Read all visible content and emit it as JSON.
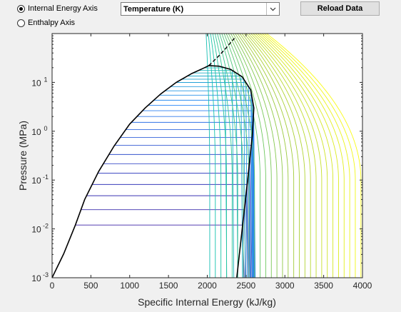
{
  "controls": {
    "radio_internal": "Internal Energy Axis",
    "radio_enthalpy": "Enthalpy Axis",
    "selected": "internal",
    "property_select": "Temperature (K)",
    "reload_button": "Reload Data"
  },
  "chart_data": {
    "type": "line",
    "title": "",
    "xlabel": "Specific Internal Energy (kJ/kg)",
    "ylabel": "Pressure (MPa)",
    "xlim": [
      0,
      4000
    ],
    "ylim": [
      0.001,
      100
    ],
    "yscale": "log",
    "grid": false,
    "xticks": [
      0,
      500,
      1000,
      1500,
      2000,
      2500,
      3000,
      3500,
      4000
    ],
    "yticks": [
      0.001,
      0.01,
      0.1,
      1,
      10
    ],
    "yticklabels": [
      {
        "base": "10",
        "exp": "-3"
      },
      {
        "base": "10",
        "exp": "-2"
      },
      {
        "base": "10",
        "exp": "-1"
      },
      {
        "base": "10",
        "exp": "0"
      },
      {
        "base": "10",
        "exp": "1"
      }
    ],
    "saturation_dome": {
      "liquid": [
        [
          0,
          0.001
        ],
        [
          150,
          0.0031
        ],
        [
          300,
          0.012
        ],
        [
          420,
          0.04
        ],
        [
          600,
          0.15
        ],
        [
          800,
          0.5
        ],
        [
          1000,
          1.4
        ],
        [
          1200,
          3.0
        ],
        [
          1400,
          5.8
        ],
        [
          1600,
          10.0
        ],
        [
          1800,
          15.2
        ],
        [
          1950,
          19.5
        ],
        [
          2020,
          22.06
        ]
      ],
      "vapor": [
        [
          2020,
          22.06
        ],
        [
          2150,
          21.5
        ],
        [
          2300,
          18.5
        ],
        [
          2450,
          13
        ],
        [
          2560,
          7
        ],
        [
          2600,
          3
        ],
        [
          2580,
          0.8
        ],
        [
          2520,
          0.1
        ],
        [
          2450,
          0.01
        ],
        [
          2380,
          0.001
        ]
      ]
    },
    "critical_extension": [
      [
        2020,
        22.06
      ],
      [
        2150,
        35
      ],
      [
        2240,
        50
      ],
      [
        2300,
        65
      ],
      [
        2350,
        80
      ]
    ],
    "isotherms": {
      "series": "Temperature (K)",
      "count": 52,
      "u_at_low_p_min": 300,
      "u_at_low_p_max": 3980,
      "colormap": [
        "#3e26a8",
        "#2e87f7",
        "#14c5ab",
        "#9dc93b",
        "#f9fb14"
      ]
    }
  }
}
